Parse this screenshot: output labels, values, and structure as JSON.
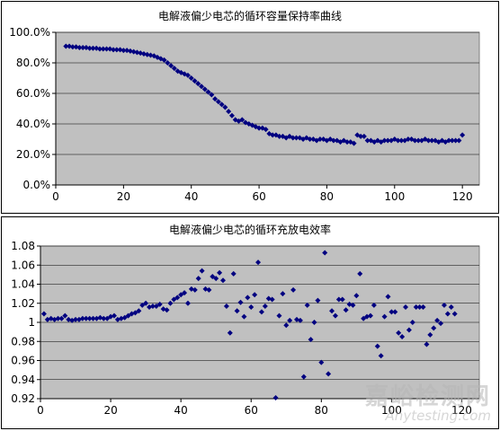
{
  "chart_data": [
    {
      "type": "scatter",
      "title": "电解液偏少电芯的循环容量保持率曲线",
      "xlim": [
        0,
        125
      ],
      "ylim": [
        0,
        1.1
      ],
      "x_ticks": [
        "0",
        "20",
        "40",
        "60",
        "80",
        "100",
        "120"
      ],
      "y_ticks": [
        "0.0%",
        "20.0%",
        "40.0%",
        "60.0%",
        "80.0%",
        "100.0%"
      ],
      "grid": true,
      "marker_color": "#000080",
      "plot_bg": "#c0c0c0",
      "series": [
        {
          "x": [
            3,
            4,
            5,
            6,
            7,
            8,
            9,
            10,
            11,
            12,
            13,
            14,
            15,
            16,
            17,
            18,
            19,
            20,
            21,
            22,
            23,
            24,
            25,
            26,
            27,
            28,
            29,
            30,
            31,
            32,
            33,
            34,
            35,
            36,
            37,
            38,
            39,
            40,
            41,
            42,
            43,
            44,
            45,
            46,
            47,
            48,
            49,
            50,
            51,
            52,
            53,
            54,
            55,
            56,
            57,
            58,
            59,
            60,
            61,
            62,
            63,
            64,
            65,
            66,
            67,
            68,
            69,
            70,
            71,
            72,
            73,
            74,
            75,
            76,
            77,
            78,
            79,
            80,
            81,
            82,
            83,
            84,
            85,
            86,
            87,
            88,
            89,
            90,
            91,
            92,
            93,
            94,
            95,
            96,
            97,
            98,
            99,
            100,
            101,
            102,
            103,
            104,
            105,
            106,
            107,
            108,
            109,
            110,
            111,
            112,
            113,
            114,
            115,
            116,
            117,
            118,
            119,
            120
          ],
          "y": [
            1.0,
            1.0,
            0.995,
            0.995,
            0.99,
            0.99,
            0.99,
            0.985,
            0.985,
            0.985,
            0.98,
            0.98,
            0.98,
            0.98,
            0.975,
            0.975,
            0.975,
            0.97,
            0.97,
            0.965,
            0.96,
            0.955,
            0.95,
            0.945,
            0.94,
            0.935,
            0.93,
            0.92,
            0.91,
            0.9,
            0.88,
            0.86,
            0.84,
            0.82,
            0.81,
            0.8,
            0.79,
            0.77,
            0.75,
            0.73,
            0.71,
            0.69,
            0.67,
            0.65,
            0.62,
            0.6,
            0.58,
            0.56,
            0.53,
            0.5,
            0.47,
            0.46,
            0.47,
            0.45,
            0.44,
            0.43,
            0.42,
            0.41,
            0.41,
            0.4,
            0.37,
            0.36,
            0.36,
            0.35,
            0.35,
            0.34,
            0.35,
            0.34,
            0.34,
            0.34,
            0.33,
            0.34,
            0.33,
            0.33,
            0.32,
            0.33,
            0.33,
            0.32,
            0.33,
            0.32,
            0.32,
            0.31,
            0.32,
            0.31,
            0.31,
            0.3,
            0.36,
            0.35,
            0.35,
            0.32,
            0.32,
            0.31,
            0.32,
            0.31,
            0.32,
            0.32,
            0.32,
            0.33,
            0.32,
            0.32,
            0.32,
            0.33,
            0.33,
            0.32,
            0.32,
            0.32,
            0.33,
            0.32,
            0.32,
            0.32,
            0.31,
            0.32,
            0.31,
            0.32,
            0.32,
            0.32,
            0.32,
            0.36
          ]
        }
      ]
    },
    {
      "type": "scatter",
      "title": "电解液偏少电芯的循环充放电效率",
      "xlim": [
        0,
        125
      ],
      "ylim": [
        0.92,
        1.08
      ],
      "x_ticks": [
        "0",
        "20",
        "40",
        "60",
        "80",
        "100",
        "120"
      ],
      "y_ticks": [
        "0.92",
        "0.94",
        "0.96",
        "0.98",
        "1",
        "1.02",
        "1.04",
        "1.06",
        "1.08"
      ],
      "grid": true,
      "marker_color": "#000080",
      "plot_bg": "#c0c0c0",
      "series": [
        {
          "x": [
            1,
            2,
            3,
            4,
            5,
            6,
            7,
            8,
            9,
            10,
            11,
            12,
            13,
            14,
            15,
            16,
            17,
            18,
            19,
            20,
            21,
            22,
            23,
            24,
            25,
            26,
            27,
            28,
            29,
            30,
            31,
            32,
            33,
            34,
            35,
            36,
            37,
            38,
            39,
            40,
            41,
            42,
            43,
            44,
            45,
            46,
            47,
            48,
            49,
            50,
            51,
            52,
            53,
            54,
            55,
            56,
            57,
            58,
            59,
            60,
            61,
            62,
            63,
            64,
            65,
            66,
            67,
            68,
            69,
            70,
            71,
            72,
            73,
            74,
            75,
            76,
            77,
            78,
            79,
            80,
            81,
            82,
            83,
            84,
            85,
            86,
            87,
            88,
            89,
            90,
            91,
            92,
            93,
            94,
            95,
            96,
            97,
            98,
            99,
            100,
            101,
            102,
            103,
            104,
            105,
            106,
            107,
            108,
            109,
            110,
            111,
            112,
            113,
            114,
            115,
            116,
            117,
            118
          ],
          "y": [
            1.009,
            1.003,
            1.004,
            1.003,
            1.004,
            1.004,
            1.007,
            1.003,
            1.002,
            1.003,
            1.003,
            1.004,
            1.004,
            1.004,
            1.004,
            1.004,
            1.005,
            1.004,
            1.004,
            1.006,
            1.007,
            1.003,
            1.004,
            1.005,
            1.007,
            1.009,
            1.01,
            1.012,
            1.018,
            1.02,
            1.016,
            1.017,
            1.017,
            1.019,
            1.014,
            1.013,
            1.02,
            1.024,
            1.026,
            1.029,
            1.031,
            1.02,
            1.035,
            1.034,
            1.046,
            1.054,
            1.035,
            1.034,
            1.048,
            1.046,
            1.052,
            1.044,
            1.017,
            0.989,
            1.051,
            1.012,
            1.021,
            1.006,
            1.026,
            1.016,
            1.029,
            1.063,
            1.011,
            1.017,
            1.025,
            1.024,
            0.921,
            1.007,
            1.03,
            0.997,
            1.002,
            1.034,
            1.003,
            1.002,
            0.943,
            1.018,
            0.982,
            1.0,
            1.023,
            0.958,
            1.073,
            0.946,
            1.012,
            1.007,
            1.024,
            1.024,
            1.013,
            1.019,
            1.018,
            1.028,
            1.051,
            1.004,
            1.006,
            1.007,
            1.018,
            0.975,
            0.965,
            1.006,
            1.027,
            1.011,
            1.011,
            0.989,
            0.985,
            1.016,
            0.992,
            1.0,
            1.016,
            1.016,
            1.016,
            0.977,
            0.987,
            0.994,
            1.002,
            0.999,
            1.018,
            1.009,
            1.016,
            1.009
          ]
        }
      ]
    }
  ],
  "watermark": {
    "cn": "嘉峪检测网",
    "en": "Anytesting.com"
  }
}
